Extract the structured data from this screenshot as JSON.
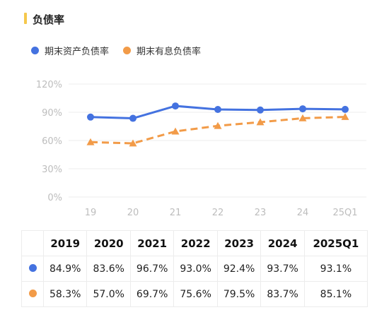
{
  "header": {
    "title": "负债率"
  },
  "colors": {
    "asset": "#4472e0",
    "interest": "#f29b48",
    "accent": "#f5c84c"
  },
  "chart_data": {
    "type": "line",
    "categories": [
      "19",
      "20",
      "21",
      "22",
      "23",
      "24",
      "25Q1"
    ],
    "y_ticks": [
      "0%",
      "30%",
      "60%",
      "90%",
      "120%"
    ],
    "ylim": [
      0,
      120
    ],
    "legend_position": "top-left",
    "grid": true,
    "series": [
      {
        "name": "期末资产负债率",
        "values": [
          84.9,
          83.6,
          96.7,
          93.0,
          92.4,
          93.7,
          93.1
        ],
        "style": "solid",
        "marker": "circle"
      },
      {
        "name": "期末有息负债率",
        "values": [
          58.3,
          57.0,
          69.7,
          75.6,
          79.5,
          83.7,
          85.1
        ],
        "style": "dashed",
        "marker": "triangle"
      }
    ]
  },
  "table": {
    "headers": [
      "2019",
      "2020",
      "2021",
      "2022",
      "2023",
      "2024",
      "2025Q1"
    ],
    "rows": [
      {
        "values": [
          "84.9%",
          "83.6%",
          "96.7%",
          "93.0%",
          "92.4%",
          "93.7%",
          "93.1%"
        ]
      },
      {
        "values": [
          "58.3%",
          "57.0%",
          "69.7%",
          "75.6%",
          "79.5%",
          "83.7%",
          "85.1%"
        ]
      }
    ]
  }
}
